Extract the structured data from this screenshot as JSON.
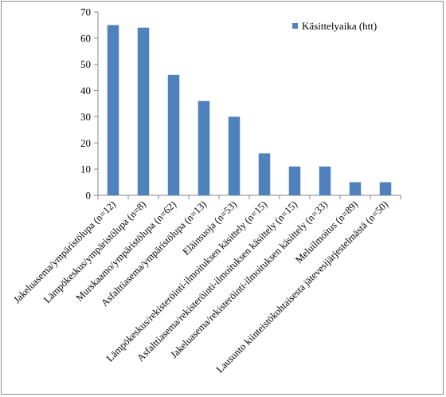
{
  "chart_data": {
    "type": "bar",
    "categories": [
      "Jakeluasema/ympäristölupa (n=12)",
      "Lämpökeskus/ympäristölupa (n=8)",
      "Murskaamo/ympäristölupa (n=62)",
      "Asfalttiasema/ympäristölupa (n=13)",
      "Eläinsuoja (n=53)",
      "Lämpökeskus/rekisteröinti-ilmoituksen käsittely (n=15)",
      "Asfalttiasema/rekisteröinti-ilmoituksen käsittely (n=15)",
      "Jakeluasema/rekisteröinti-ilmoituksen käsittely (n=33)",
      "Meluilmoitus (n=89)",
      "Lausunto kiinteistökohtaisesta jätevesijärjestelmästä (n=50)"
    ],
    "series": [
      {
        "name": "Käsittelyaika (htt)",
        "values": [
          65,
          64,
          46,
          36,
          30,
          16,
          11,
          11,
          5,
          5
        ],
        "color": "#4f81bd"
      }
    ],
    "ylim": [
      0,
      70
    ],
    "yticks": [
      "0",
      "10",
      "20",
      "30",
      "40",
      "50",
      "60",
      "70"
    ],
    "legend_position": "top-right",
    "grid": false
  }
}
